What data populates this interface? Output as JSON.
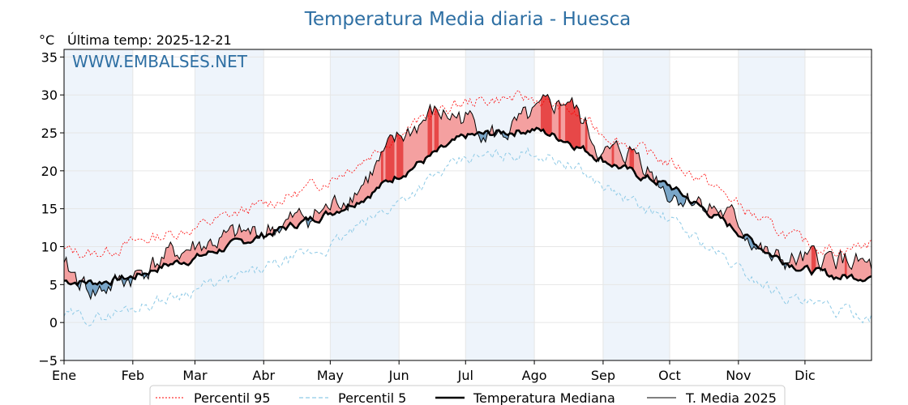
{
  "chart_data": {
    "type": "line",
    "title": "Temperatura Media diaria - Huesca",
    "unit_label": "°C",
    "last_temp_label": "Última temp: 2025-12-21",
    "watermark": "WWW.EMBALSES.NET",
    "ylim": [
      -5,
      36
    ],
    "yticks": [
      {
        "value": -5,
        "label": "−5"
      },
      {
        "value": 0,
        "label": "0"
      },
      {
        "value": 5,
        "label": "5"
      },
      {
        "value": 10,
        "label": "10"
      },
      {
        "value": 15,
        "label": "15"
      },
      {
        "value": 20,
        "label": "20"
      },
      {
        "value": 25,
        "label": "25"
      },
      {
        "value": 30,
        "label": "30"
      },
      {
        "value": 35,
        "label": "35"
      }
    ],
    "months": [
      "Ene",
      "Feb",
      "Mar",
      "Abr",
      "May",
      "Jun",
      "Jul",
      "Ago",
      "Sep",
      "Oct",
      "Nov",
      "Dic"
    ],
    "month_day_of_year": [
      1,
      32,
      60,
      91,
      121,
      152,
      182,
      213,
      244,
      274,
      305,
      335
    ],
    "days_in_year": 365,
    "grid": true,
    "legend_position": "bottom",
    "legend": {
      "p95": "Percentil 95",
      "p5": "Percentil 5",
      "median": "Temperatura Mediana",
      "current": "T. Media 2025"
    },
    "colors": {
      "p95": "#ff0000",
      "p5": "#8ecae6",
      "median": "#000000",
      "current": "#000000",
      "above": "#f4a0a0",
      "above_extreme": "#e74848",
      "below": "#7aa6c8",
      "below_extreme": "#1f5f99",
      "title": "#2e6fa3",
      "band": "#eef4fb"
    },
    "series_anchor_days": [
      1,
      15,
      32,
      46,
      60,
      75,
      91,
      106,
      121,
      136,
      152,
      167,
      182,
      197,
      213,
      228,
      244,
      259,
      274,
      289,
      305,
      320,
      335,
      350,
      365
    ],
    "series": {
      "median": [
        5.5,
        5.3,
        6.0,
        7.5,
        8.5,
        10.0,
        11.5,
        13.0,
        14.5,
        16.5,
        19.5,
        22.0,
        24.5,
        25.0,
        25.5,
        24.0,
        21.5,
        19.5,
        18.0,
        15.0,
        12.0,
        9.0,
        7.0,
        6.0,
        6.2
      ],
      "p95": [
        9.5,
        9.0,
        10.5,
        11.5,
        12.5,
        14.0,
        15.5,
        17.0,
        19.0,
        21.5,
        25.0,
        27.5,
        29.0,
        29.5,
        29.5,
        28.0,
        25.0,
        23.0,
        21.0,
        19.0,
        15.5,
        12.5,
        10.5,
        9.5,
        10.5
      ],
      "p5": [
        1.0,
        0.5,
        2.0,
        3.0,
        4.5,
        5.5,
        7.0,
        8.5,
        10.0,
        13.0,
        16.0,
        19.0,
        21.5,
        22.0,
        22.5,
        21.0,
        18.0,
        15.5,
        13.5,
        10.5,
        7.0,
        4.5,
        2.5,
        1.5,
        1.0
      ],
      "current_2025": [
        7.0,
        4.0,
        6.0,
        8.5,
        10.0,
        11.0,
        12.0,
        13.5,
        15.0,
        18.5,
        24.0,
        27.5,
        27.0,
        24.5,
        27.0,
        29.5,
        22.0,
        22.5,
        17.0,
        16.0,
        13.0,
        8.0,
        8.0,
        8.5,
        7.0
      ]
    }
  }
}
